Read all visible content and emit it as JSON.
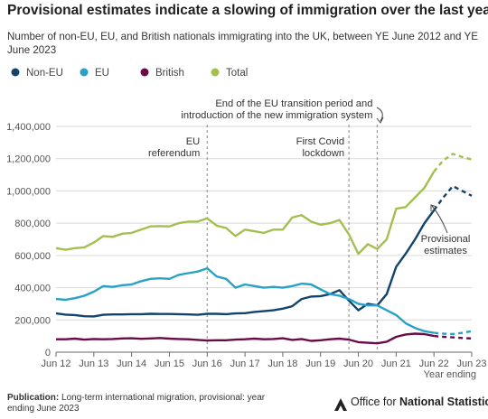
{
  "title": "Provisional estimates indicate a slowing of immigration over the last year",
  "subtitle": "Number of non-EU, EU, and British nationals immigrating into the UK, between YE June 2012 and YE June 2023",
  "footer": {
    "label": "Publication:",
    "text": "Long-term international migration, provisional: year ending June 2023"
  },
  "brand": {
    "prefix": "Office for ",
    "bold": "National Statistics"
  },
  "chart_data": {
    "type": "line",
    "xlabel": "Year ending",
    "ylabel": "",
    "ylim": [
      0,
      1400000
    ],
    "yticks": [
      0,
      200000,
      400000,
      600000,
      800000,
      1000000,
      1200000,
      1400000
    ],
    "ytick_labels": [
      "0",
      "200,000",
      "400,000",
      "600,000",
      "800,000",
      "1,000,000",
      "1,200,000",
      "1,400,000"
    ],
    "xtick_labels": [
      "Jun 12",
      "Jun 13",
      "Jun 14",
      "Jun 15",
      "Jun 16",
      "Jun 17",
      "Jun 18",
      "Jun 19",
      "Jun 20",
      "Jun 21",
      "Jun 22",
      "Jun 23"
    ],
    "grid": true,
    "legend_position": "top-left",
    "x": [
      "Jun 12",
      "Sep 12",
      "Dec 12",
      "Mar 13",
      "Jun 13",
      "Sep 13",
      "Dec 13",
      "Mar 14",
      "Jun 14",
      "Sep 14",
      "Dec 14",
      "Mar 15",
      "Jun 15",
      "Sep 15",
      "Dec 15",
      "Mar 16",
      "Jun 16",
      "Sep 16",
      "Dec 16",
      "Mar 17",
      "Jun 17",
      "Sep 17",
      "Dec 17",
      "Mar 18",
      "Jun 18",
      "Sep 18",
      "Dec 18",
      "Mar 19",
      "Jun 19",
      "Sep 19",
      "Dec 19",
      "Mar 20",
      "Jun 20",
      "Sep 20",
      "Dec 20",
      "Mar 21",
      "Jun 21",
      "Sep 21",
      "Dec 21",
      "Mar 22",
      "Jun 22",
      "Sep 22",
      "Dec 22",
      "Mar 23",
      "Jun 23"
    ],
    "provisional_from_index": 40,
    "series": [
      {
        "name": "Non-EU",
        "color": "#12436d",
        "values": [
          240000,
          233000,
          230000,
          223000,
          222000,
          232000,
          234000,
          234000,
          236000,
          236000,
          238000,
          237000,
          237000,
          236000,
          234000,
          232000,
          238000,
          238000,
          236000,
          240000,
          242000,
          250000,
          254000,
          260000,
          270000,
          285000,
          330000,
          345000,
          348000,
          360000,
          385000,
          320000,
          260000,
          300000,
          290000,
          360000,
          530000,
          610000,
          700000,
          800000,
          880000,
          960000,
          1030000,
          1000000,
          970000
        ]
      },
      {
        "name": "EU",
        "color": "#28a1c8",
        "values": [
          330000,
          325000,
          335000,
          350000,
          375000,
          410000,
          405000,
          415000,
          420000,
          440000,
          455000,
          458000,
          455000,
          480000,
          490000,
          500000,
          520000,
          470000,
          455000,
          400000,
          420000,
          410000,
          400000,
          405000,
          400000,
          410000,
          425000,
          420000,
          390000,
          360000,
          350000,
          330000,
          300000,
          290000,
          290000,
          260000,
          230000,
          180000,
          150000,
          130000,
          120000,
          115000,
          112000,
          120000,
          130000
        ]
      },
      {
        "name": "British",
        "color": "#6a0b48",
        "values": [
          80000,
          80000,
          84000,
          78000,
          82000,
          80000,
          82000,
          85000,
          86000,
          83000,
          85000,
          88000,
          84000,
          82000,
          80000,
          76000,
          72000,
          74000,
          74000,
          78000,
          80000,
          84000,
          80000,
          82000,
          86000,
          76000,
          82000,
          70000,
          74000,
          80000,
          84000,
          78000,
          62000,
          58000,
          55000,
          65000,
          95000,
          110000,
          115000,
          112000,
          100000,
          95000,
          92000,
          88000,
          85000
        ]
      },
      {
        "name": "Total",
        "color": "#a3c04e",
        "values": [
          645000,
          635000,
          645000,
          650000,
          680000,
          720000,
          715000,
          735000,
          740000,
          760000,
          780000,
          782000,
          780000,
          800000,
          810000,
          810000,
          830000,
          785000,
          770000,
          720000,
          760000,
          750000,
          740000,
          760000,
          760000,
          835000,
          850000,
          810000,
          790000,
          800000,
          820000,
          730000,
          610000,
          670000,
          640000,
          700000,
          890000,
          900000,
          960000,
          1020000,
          1120000,
          1190000,
          1230000,
          1210000,
          1195000
        ]
      }
    ],
    "reference_lines": [
      {
        "x_index": 16,
        "label": [
          "EU",
          "referendum"
        ]
      },
      {
        "x_index": 31,
        "label": [
          "First Covid",
          "lockdown"
        ]
      },
      {
        "x_index": 34,
        "label": [
          "End of the EU transition period and",
          "introduction of the new immigration system"
        ]
      }
    ],
    "annotation": {
      "x_index": 42,
      "label": [
        "Provisional",
        "estimates"
      ]
    }
  }
}
